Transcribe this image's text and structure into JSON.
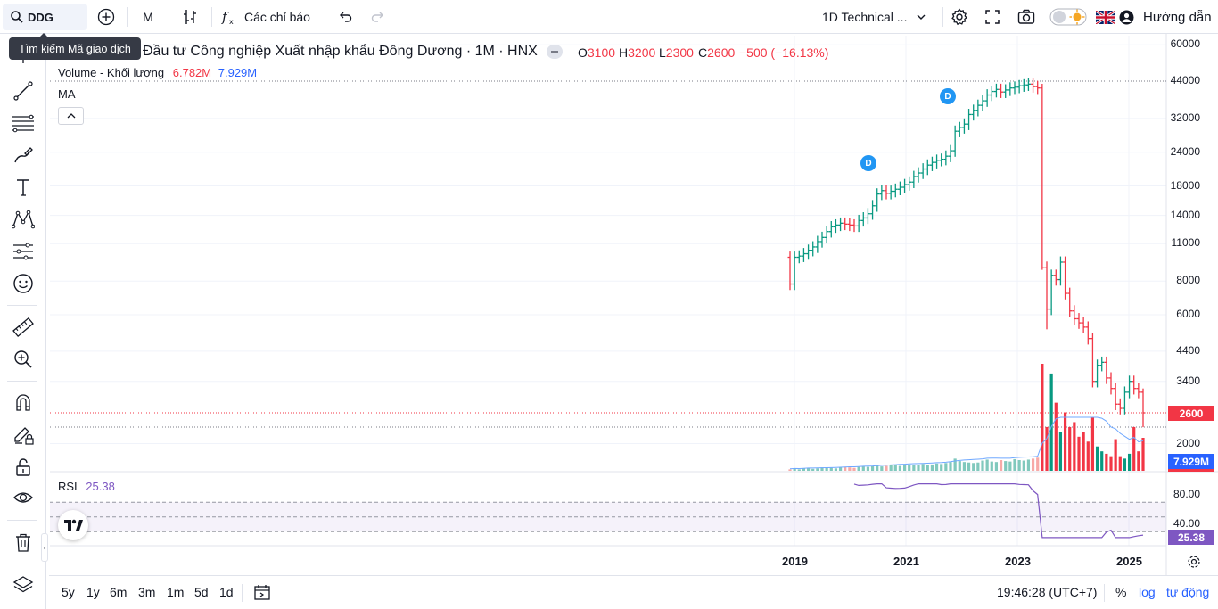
{
  "toolbar": {
    "symbol": "DDG",
    "interval": "M",
    "indicators_label": "Các chỉ báo",
    "template_label": "1D Technical ...",
    "guide_label": "Hướng dẫn"
  },
  "tooltip": "Tìm kiếm Mã giao dịch",
  "legend": {
    "title": "Đầu tư Công nghiệp Xuất nhập khẩu Đông Dương · 1M · HNX",
    "open_key": "O",
    "open": "3100",
    "high_key": "H",
    "high": "3200",
    "low_key": "L",
    "low": "2300",
    "close_key": "C",
    "close": "2600",
    "change": "−500 (−16.13%)",
    "volume_label": "Volume - Khối lượng",
    "volume_value": "6.782M",
    "volume_ma": "7.929M",
    "ma_label": "MA",
    "rsi_label": "RSI",
    "rsi_value": "25.38"
  },
  "price_axis": [
    "60000",
    "44000",
    "32000",
    "24000",
    "18000",
    "14000",
    "11000",
    "8000",
    "6000",
    "4400",
    "3400",
    "2600",
    "2000"
  ],
  "rsi_axis": [
    "80.00",
    "40.00"
  ],
  "tags": {
    "last_price": "2600",
    "volume_ma": "7.929M",
    "rsi": "25.38"
  },
  "time_axis": [
    "2019",
    "2021",
    "2023",
    "2025"
  ],
  "events": [
    "D",
    "D"
  ],
  "bottom": {
    "ranges": [
      "5y",
      "1y",
      "6m",
      "3m",
      "1m",
      "5d",
      "1d"
    ],
    "time": "19:46:28 (UTC+7)",
    "percent": "%",
    "log": "log",
    "auto": "tự động"
  },
  "colors": {
    "up": "#089981",
    "down": "#f23645",
    "volume_ma_line": "#2962ff",
    "rsi_line": "#7e57c2",
    "accent": "#2962ff"
  },
  "chart_data": {
    "type": "ohlc",
    "interval": "1M",
    "scale": "log",
    "ylim": [
      2000,
      60000
    ],
    "x_ticks": [
      "2019",
      "2021",
      "2023",
      "2025"
    ],
    "close": [
      7800,
      9800,
      9900,
      10100,
      10400,
      10700,
      11200,
      11600,
      12200,
      12700,
      12900,
      13100,
      13000,
      12900,
      12800,
      13400,
      13700,
      14200,
      15200,
      16800,
      17300,
      16900,
      17200,
      17500,
      17800,
      18200,
      18600,
      19500,
      20100,
      20800,
      21500,
      22000,
      22400,
      22600,
      23200,
      24300,
      28700,
      29600,
      30500,
      33100,
      34300,
      35800,
      37200,
      39100,
      40300,
      41000,
      40100,
      40800,
      41500,
      41800,
      42300,
      42600,
      42900,
      42000,
      41500,
      9000,
      6300,
      8400,
      8100,
      9400,
      7200,
      6200,
      5800,
      5600,
      5400,
      4900,
      3400,
      3900,
      4000,
      3500,
      3200,
      2800,
      2700,
      3100,
      3400,
      3200,
      3100,
      2600
    ],
    "last": {
      "open": 3100,
      "high": 3200,
      "low": 2300,
      "close": 2600,
      "change": -500,
      "change_pct": -16.13
    },
    "volume": [
      0.3,
      0.4,
      0.3,
      0.5,
      0.6,
      0.4,
      0.5,
      0.7,
      0.6,
      0.6,
      0.5,
      0.7,
      0.8,
      0.7,
      0.6,
      0.8,
      0.9,
      0.8,
      1.0,
      1.1,
      0.9,
      1.0,
      1.1,
      1.2,
      1.0,
      1.1,
      1.3,
      1.2,
      1.1,
      1.4,
      1.2,
      1.3,
      1.5,
      1.4,
      1.6,
      1.8,
      2.5,
      2.0,
      1.8,
      1.7,
      1.6,
      1.7,
      2.1,
      2.3,
      1.9,
      1.8,
      2.2,
      2.0,
      1.9,
      2.4,
      2.2,
      2.1,
      2.3,
      2.5,
      2.7,
      22.0,
      9.0,
      20.0,
      14.0,
      8.0,
      12.0,
      9.0,
      10.0,
      7.0,
      8.0,
      6.0,
      11.0,
      5.0,
      4.0,
      3.5,
      3.0,
      6.5,
      3.0,
      2.5,
      3.5,
      9.0,
      4.0,
      6.782
    ],
    "rsi_ylim": [
      0,
      100
    ],
    "rsi_levels": [
      80,
      40
    ],
    "rsi_last": 25.38
  }
}
